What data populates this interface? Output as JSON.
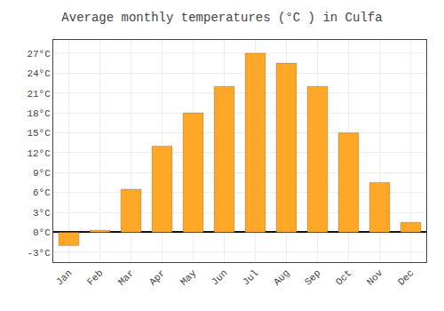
{
  "chart_data": {
    "type": "bar",
    "title": "Average monthly temperatures (°C ) in Culfa",
    "categories": [
      "Jan",
      "Feb",
      "Mar",
      "Apr",
      "May",
      "Jun",
      "Jul",
      "Aug",
      "Sep",
      "Oct",
      "Nov",
      "Dec"
    ],
    "values": [
      -2.0,
      0.3,
      6.5,
      13.0,
      18.0,
      22.0,
      27.0,
      25.5,
      22.0,
      15.0,
      7.5,
      1.5
    ],
    "color": "#FFA726",
    "ylim": [
      -4.5,
      29
    ],
    "yticks": [
      {
        "value": -3,
        "label": "-3°C"
      },
      {
        "value": 0,
        "label": "0°C"
      },
      {
        "value": 3,
        "label": "3°C"
      },
      {
        "value": 6,
        "label": "6°C"
      },
      {
        "value": 9,
        "label": "9°C"
      },
      {
        "value": 12,
        "label": "12°C"
      },
      {
        "value": 15,
        "label": "15°C"
      },
      {
        "value": 18,
        "label": "18°C"
      },
      {
        "value": 21,
        "label": "21°C"
      },
      {
        "value": 24,
        "label": "24°C"
      },
      {
        "value": 27,
        "label": "27°C"
      }
    ],
    "grid": true
  }
}
